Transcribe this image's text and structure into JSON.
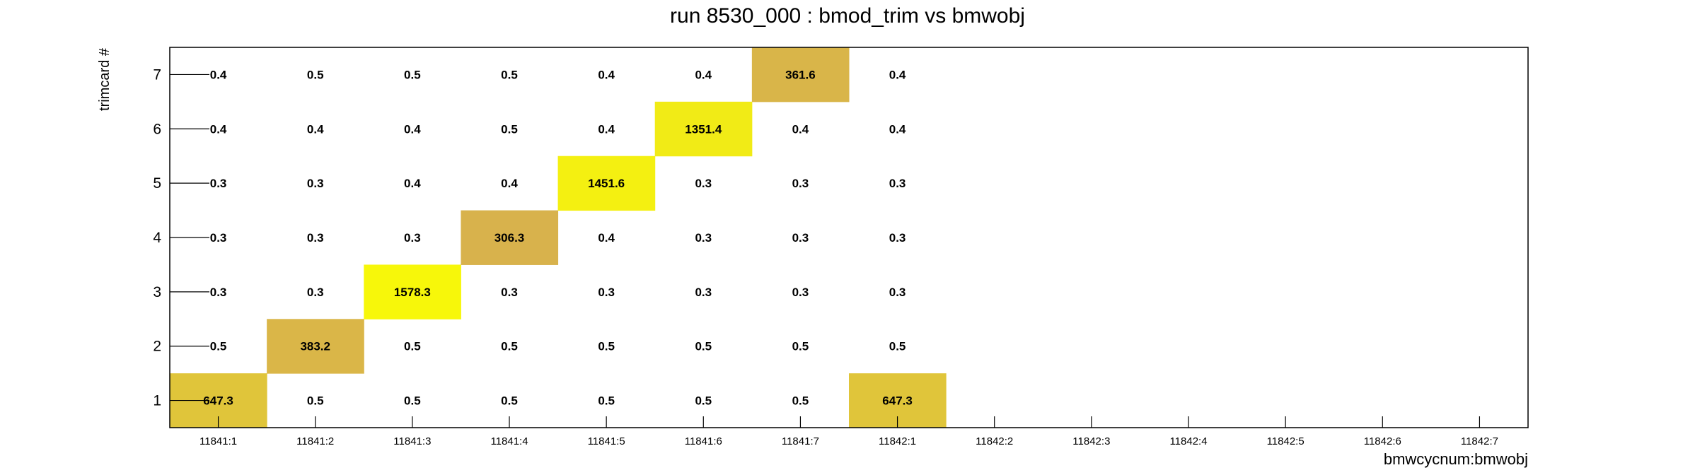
{
  "chart_data": {
    "type": "heatmap",
    "title": "run 8530_000 : bmod_trim vs bmwobj",
    "xlabel": "bmwcycnum:bmwobj",
    "ylabel": "trimcard #",
    "x_categories": [
      "11841:1",
      "11841:2",
      "11841:3",
      "11841:4",
      "11841:5",
      "11841:6",
      "11841:7",
      "11842:1",
      "11842:2",
      "11842:3",
      "11842:4",
      "11842:5",
      "11842:6",
      "11842:7"
    ],
    "y_categories": [
      "1",
      "2",
      "3",
      "4",
      "5",
      "6",
      "7"
    ],
    "cells": [
      {
        "x": "11841:1",
        "y": "1",
        "value": 647.3
      },
      {
        "x": "11841:1",
        "y": "2",
        "value": 0.5
      },
      {
        "x": "11841:1",
        "y": "3",
        "value": 0.3
      },
      {
        "x": "11841:1",
        "y": "4",
        "value": 0.3
      },
      {
        "x": "11841:1",
        "y": "5",
        "value": 0.3
      },
      {
        "x": "11841:1",
        "y": "6",
        "value": 0.4
      },
      {
        "x": "11841:1",
        "y": "7",
        "value": 0.4
      },
      {
        "x": "11841:2",
        "y": "1",
        "value": 0.5
      },
      {
        "x": "11841:2",
        "y": "2",
        "value": 383.2
      },
      {
        "x": "11841:2",
        "y": "3",
        "value": 0.3
      },
      {
        "x": "11841:2",
        "y": "4",
        "value": 0.3
      },
      {
        "x": "11841:2",
        "y": "5",
        "value": 0.3
      },
      {
        "x": "11841:2",
        "y": "6",
        "value": 0.4
      },
      {
        "x": "11841:2",
        "y": "7",
        "value": 0.5
      },
      {
        "x": "11841:3",
        "y": "1",
        "value": 0.5
      },
      {
        "x": "11841:3",
        "y": "2",
        "value": 0.5
      },
      {
        "x": "11841:3",
        "y": "3",
        "value": 1578.3
      },
      {
        "x": "11841:3",
        "y": "4",
        "value": 0.3
      },
      {
        "x": "11841:3",
        "y": "5",
        "value": 0.4
      },
      {
        "x": "11841:3",
        "y": "6",
        "value": 0.4
      },
      {
        "x": "11841:3",
        "y": "7",
        "value": 0.5
      },
      {
        "x": "11841:4",
        "y": "1",
        "value": 0.5
      },
      {
        "x": "11841:4",
        "y": "2",
        "value": 0.5
      },
      {
        "x": "11841:4",
        "y": "3",
        "value": 0.3
      },
      {
        "x": "11841:4",
        "y": "4",
        "value": 306.3
      },
      {
        "x": "11841:4",
        "y": "5",
        "value": 0.4
      },
      {
        "x": "11841:4",
        "y": "6",
        "value": 0.5
      },
      {
        "x": "11841:4",
        "y": "7",
        "value": 0.5
      },
      {
        "x": "11841:5",
        "y": "1",
        "value": 0.5
      },
      {
        "x": "11841:5",
        "y": "2",
        "value": 0.5
      },
      {
        "x": "11841:5",
        "y": "3",
        "value": 0.3
      },
      {
        "x": "11841:5",
        "y": "4",
        "value": 0.4
      },
      {
        "x": "11841:5",
        "y": "5",
        "value": 1451.6
      },
      {
        "x": "11841:5",
        "y": "6",
        "value": 0.4
      },
      {
        "x": "11841:5",
        "y": "7",
        "value": 0.4
      },
      {
        "x": "11841:6",
        "y": "1",
        "value": 0.5
      },
      {
        "x": "11841:6",
        "y": "2",
        "value": 0.5
      },
      {
        "x": "11841:6",
        "y": "3",
        "value": 0.3
      },
      {
        "x": "11841:6",
        "y": "4",
        "value": 0.3
      },
      {
        "x": "11841:6",
        "y": "5",
        "value": 0.3
      },
      {
        "x": "11841:6",
        "y": "6",
        "value": 1351.4
      },
      {
        "x": "11841:6",
        "y": "7",
        "value": 0.4
      },
      {
        "x": "11841:7",
        "y": "1",
        "value": 0.5
      },
      {
        "x": "11841:7",
        "y": "2",
        "value": 0.5
      },
      {
        "x": "11841:7",
        "y": "3",
        "value": 0.3
      },
      {
        "x": "11841:7",
        "y": "4",
        "value": 0.3
      },
      {
        "x": "11841:7",
        "y": "5",
        "value": 0.3
      },
      {
        "x": "11841:7",
        "y": "6",
        "value": 0.4
      },
      {
        "x": "11841:7",
        "y": "7",
        "value": 361.6
      },
      {
        "x": "11842:1",
        "y": "1",
        "value": 647.3
      },
      {
        "x": "11842:1",
        "y": "2",
        "value": 0.5
      },
      {
        "x": "11842:1",
        "y": "3",
        "value": 0.3
      },
      {
        "x": "11842:1",
        "y": "4",
        "value": 0.3
      },
      {
        "x": "11842:1",
        "y": "5",
        "value": 0.3
      },
      {
        "x": "11842:1",
        "y": "6",
        "value": 0.4
      },
      {
        "x": "11842:1",
        "y": "7",
        "value": 0.4
      }
    ],
    "color_scale": {
      "low": "#d8b24c",
      "high": "#f7f70a",
      "min": 300,
      "max": 1580,
      "fill_threshold": 100
    },
    "grid": false,
    "legend": "none"
  }
}
